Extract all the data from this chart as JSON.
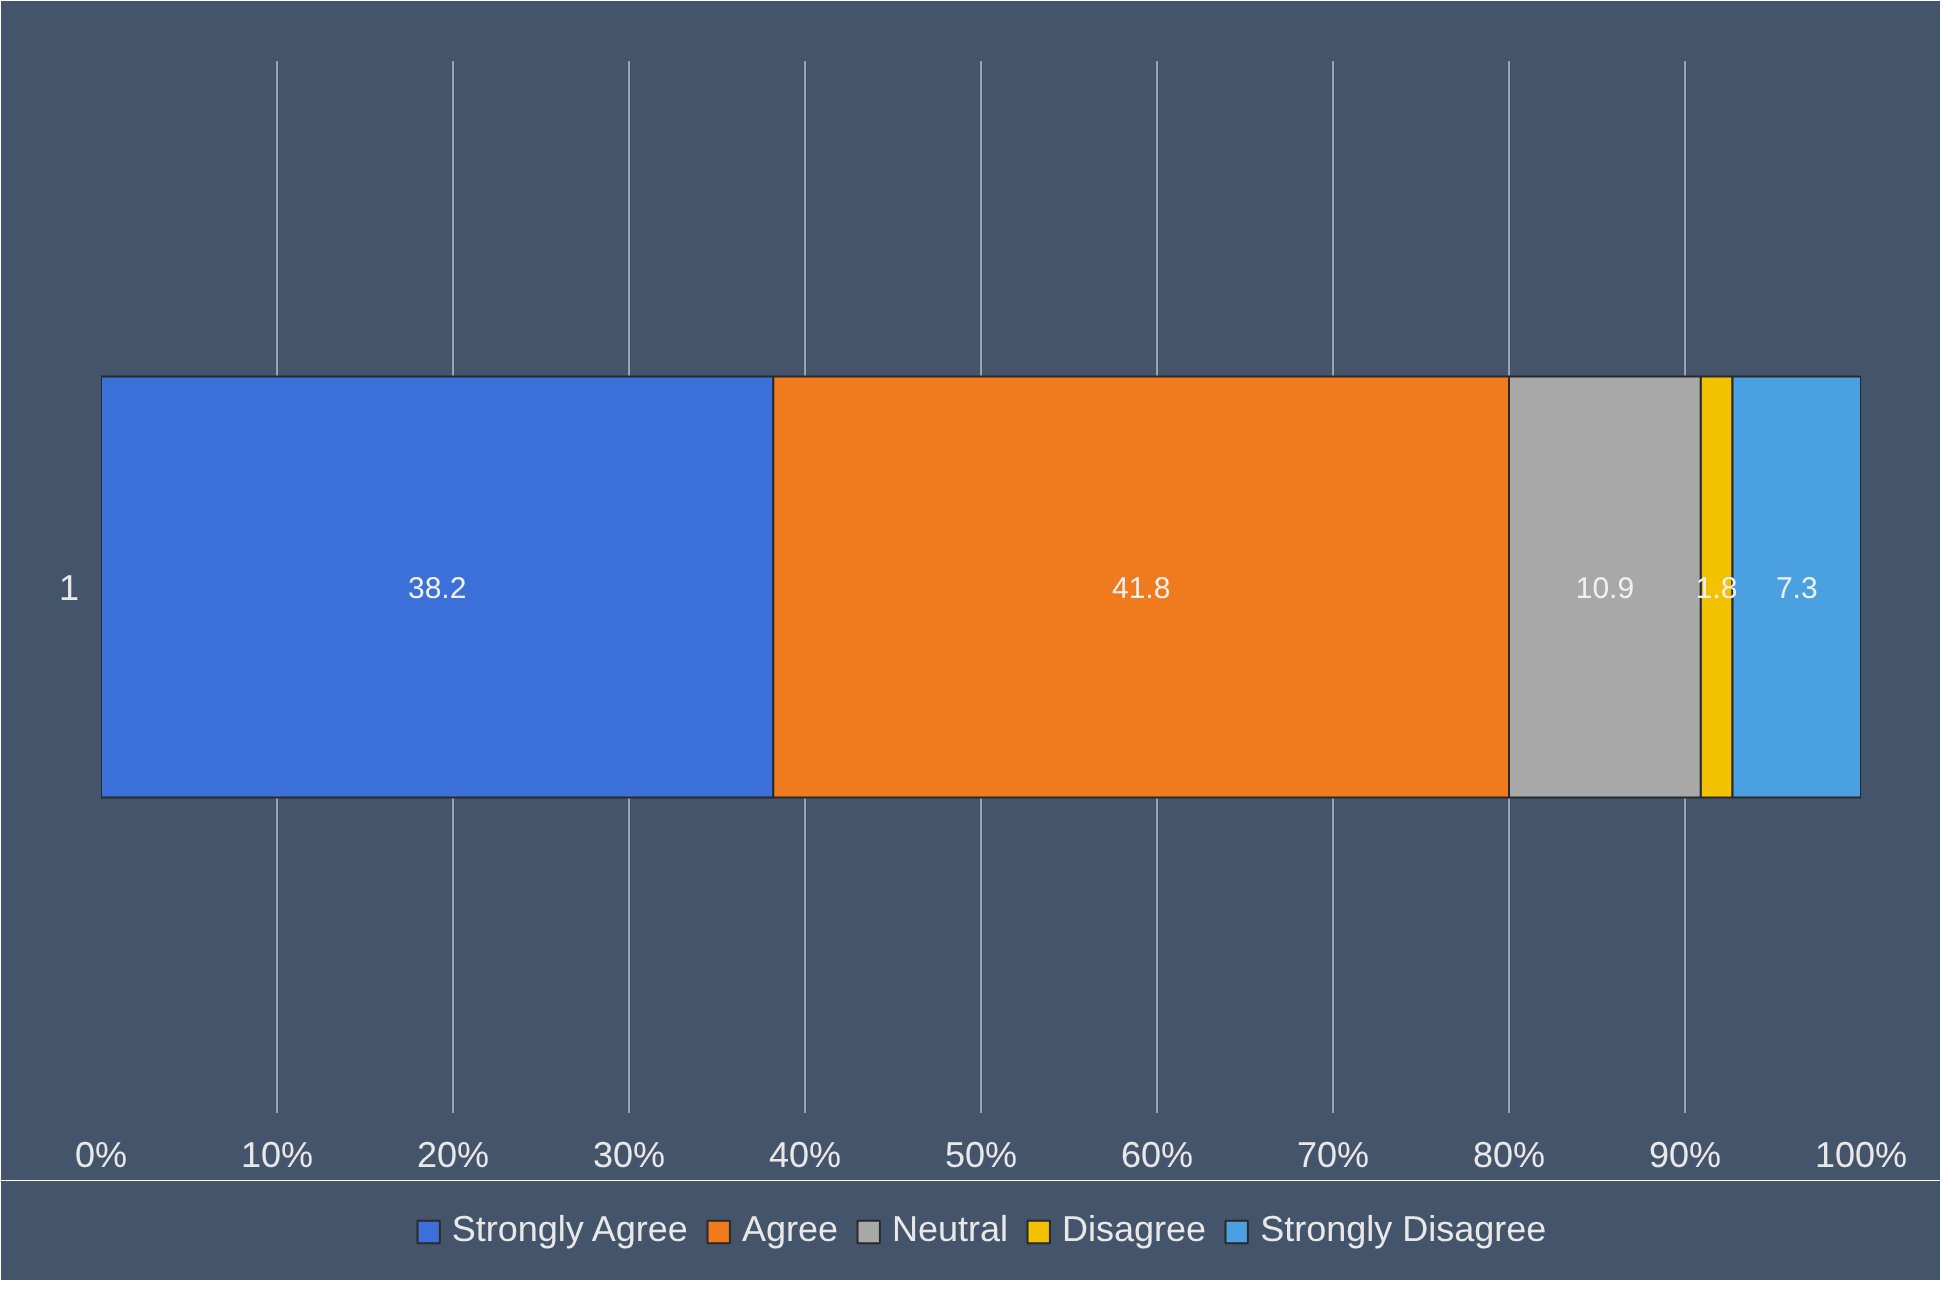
{
  "chart_data": {
    "type": "bar",
    "orientation": "horizontal",
    "stacked": true,
    "categories": [
      "1"
    ],
    "series": [
      {
        "name": "Strongly Agree",
        "color": "#3a70d8",
        "values": [
          38.2
        ]
      },
      {
        "name": "Agree",
        "color": "#f07a1e",
        "values": [
          41.8
        ]
      },
      {
        "name": "Neutral",
        "color": "#a8a8a8",
        "values": [
          10.9
        ]
      },
      {
        "name": "Disagree",
        "color": "#f2c200",
        "values": [
          1.8
        ]
      },
      {
        "name": "Strongly Disagree",
        "color": "#4aa0e0",
        "values": [
          7.3
        ]
      }
    ],
    "xlim": [
      0,
      100
    ],
    "xticks": [
      {
        "value": 0,
        "label": "0%"
      },
      {
        "value": 10,
        "label": "10%"
      },
      {
        "value": 20,
        "label": "20%"
      },
      {
        "value": 30,
        "label": "30%"
      },
      {
        "value": 40,
        "label": "40%"
      },
      {
        "value": 50,
        "label": "50%"
      },
      {
        "value": 60,
        "label": "60%"
      },
      {
        "value": 70,
        "label": "70%"
      },
      {
        "value": 80,
        "label": "80%"
      },
      {
        "value": 90,
        "label": "90%"
      },
      {
        "value": 100,
        "label": "100%"
      }
    ],
    "grid": "x",
    "legend": "bottom",
    "data_labels": true
  }
}
